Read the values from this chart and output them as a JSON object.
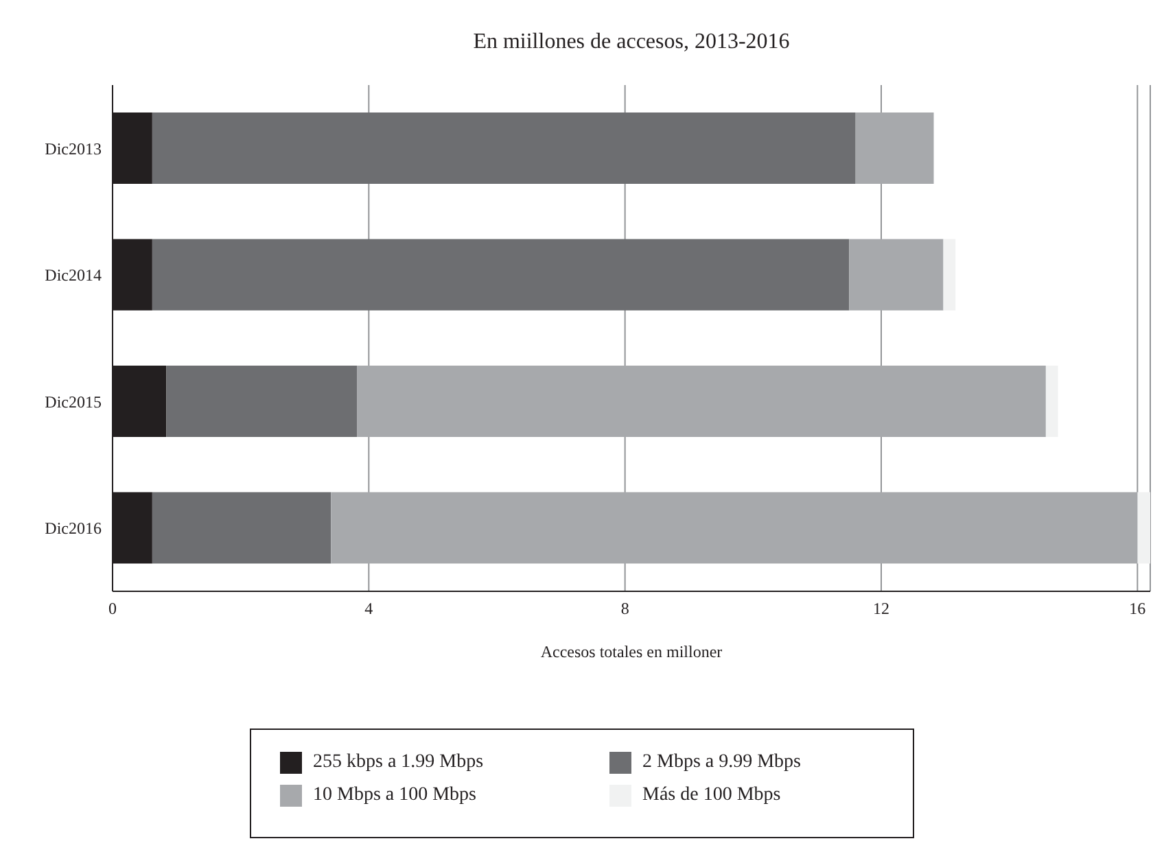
{
  "chart_data": {
    "type": "bar",
    "orientation": "horizontal",
    "stacked": true,
    "title": "En miillones de accesos, 2013-2016",
    "xlabel": "Accesos totales en milloner",
    "categories": [
      "Dic2013",
      "Dic2014",
      "Dic2015",
      "Dic2016"
    ],
    "series": [
      {
        "name": "255 kbps a 1.99 Mbps",
        "color": "#231f20",
        "values": [
          0.62,
          0.62,
          0.84,
          0.62
        ]
      },
      {
        "name": "2 Mbps a 9.99 Mbps",
        "color": "#6d6e71",
        "values": [
          10.98,
          10.88,
          2.98,
          2.79
        ]
      },
      {
        "name": "10 Mbps a 100 Mbps",
        "color": "#a7a9ac",
        "values": [
          1.22,
          1.47,
          10.75,
          12.59
        ]
      },
      {
        "name": "Más de 100 Mbps",
        "color": "#f1f2f2",
        "values": [
          null,
          0.19,
          0.19,
          0.2
        ]
      }
    ],
    "xlim": [
      0,
      16.2
    ],
    "xticks": [
      0,
      4,
      8,
      12,
      16
    ],
    "grid": "x",
    "legend": "bottom"
  }
}
